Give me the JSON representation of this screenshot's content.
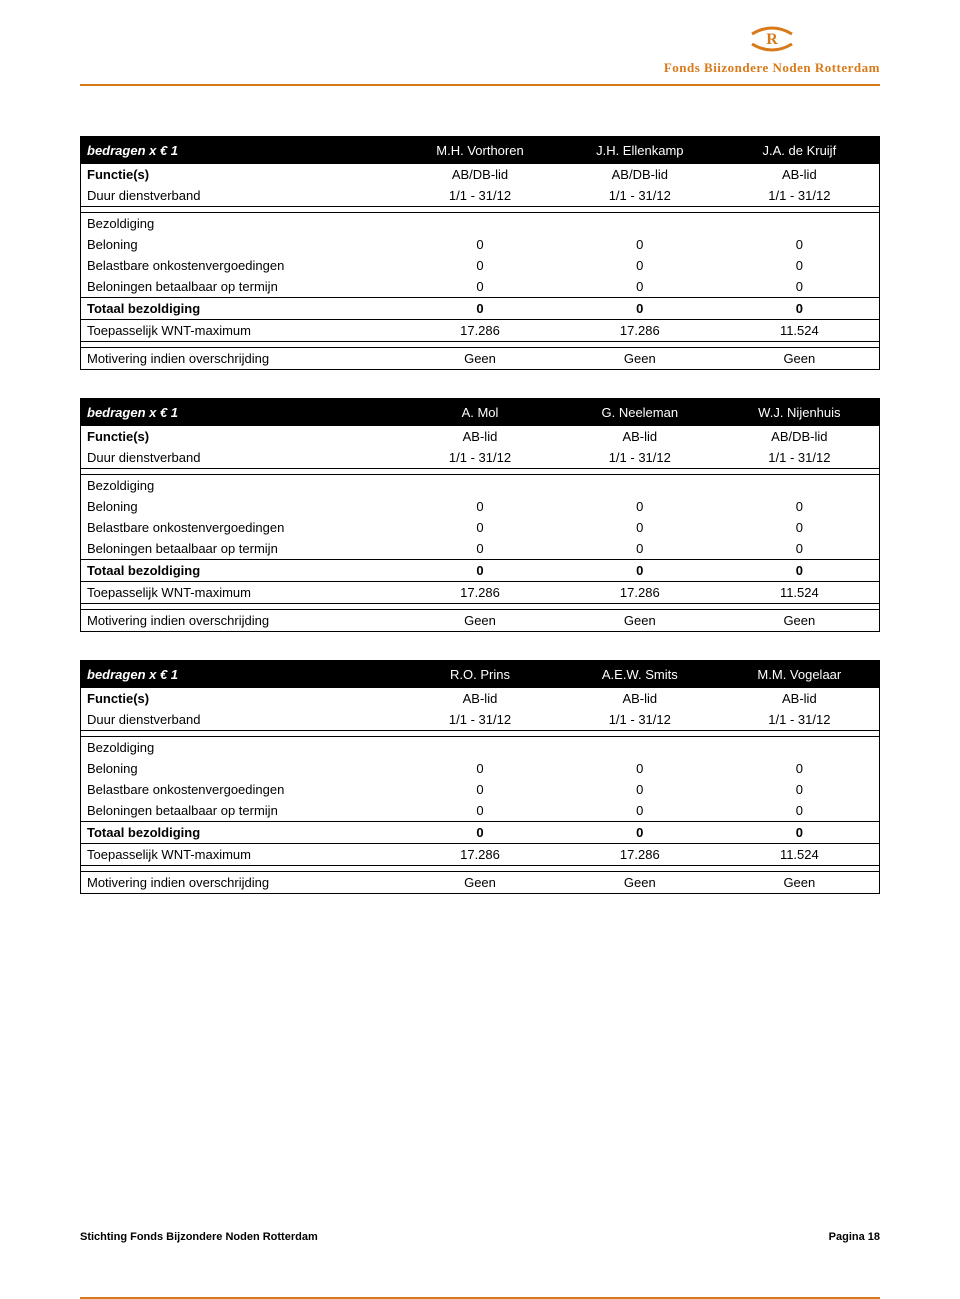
{
  "brand": {
    "name": "Fonds Biizondere Noden Rotterdam",
    "accent_color": "#d97a1a"
  },
  "tables": [
    {
      "header_label": "bedragen x € 1",
      "persons": [
        "M.H. Vorthoren",
        "J.H. Ellenkamp",
        "J.A. de Kruijf"
      ],
      "rows": [
        {
          "label": "Functie(s)",
          "vals": [
            "AB/DB-lid",
            "AB/DB-lid",
            "AB-lid"
          ],
          "bold_label": true
        },
        {
          "label": "Duur dienstverband",
          "vals": [
            "1/1 - 31/12",
            "1/1 - 31/12",
            "1/1 - 31/12"
          ]
        }
      ],
      "section_label": "Bezoldiging",
      "data_rows": [
        {
          "label": "Beloning",
          "vals": [
            "0",
            "0",
            "0"
          ]
        },
        {
          "label": "Belastbare onkostenvergoedingen",
          "vals": [
            "0",
            "0",
            "0"
          ]
        },
        {
          "label": "Beloningen betaalbaar op termijn",
          "vals": [
            "0",
            "0",
            "0"
          ]
        }
      ],
      "totals": [
        {
          "label": "Totaal bezoldiging",
          "vals": [
            "0",
            "0",
            "0"
          ],
          "bold": true
        },
        {
          "label": "Toepasselijk WNT-maximum",
          "vals": [
            "17.286",
            "17.286",
            "11.524"
          ]
        }
      ],
      "motiv": {
        "label": "Motivering indien overschrijding",
        "vals": [
          "Geen",
          "Geen",
          "Geen"
        ]
      }
    },
    {
      "header_label": "bedragen x € 1",
      "persons": [
        "A. Mol",
        "G. Neeleman",
        "W.J. Nijenhuis"
      ],
      "rows": [
        {
          "label": "Functie(s)",
          "vals": [
            "AB-lid",
            "AB-lid",
            "AB/DB-lid"
          ],
          "bold_label": true
        },
        {
          "label": "Duur dienstverband",
          "vals": [
            "1/1 - 31/12",
            "1/1 - 31/12",
            "1/1 - 31/12"
          ]
        }
      ],
      "section_label": "Bezoldiging",
      "data_rows": [
        {
          "label": "Beloning",
          "vals": [
            "0",
            "0",
            "0"
          ]
        },
        {
          "label": "Belastbare onkostenvergoedingen",
          "vals": [
            "0",
            "0",
            "0"
          ]
        },
        {
          "label": "Beloningen betaalbaar op termijn",
          "vals": [
            "0",
            "0",
            "0"
          ]
        }
      ],
      "totals": [
        {
          "label": "Totaal bezoldiging",
          "vals": [
            "0",
            "0",
            "0"
          ],
          "bold": true
        },
        {
          "label": "Toepasselijk WNT-maximum",
          "vals": [
            "17.286",
            "17.286",
            "11.524"
          ]
        }
      ],
      "motiv": {
        "label": "Motivering indien overschrijding",
        "vals": [
          "Geen",
          "Geen",
          "Geen"
        ]
      }
    },
    {
      "header_label": "bedragen x € 1",
      "persons": [
        "R.O. Prins",
        "A.E.W. Smits",
        "M.M. Vogelaar"
      ],
      "rows": [
        {
          "label": "Functie(s)",
          "vals": [
            "AB-lid",
            "AB-lid",
            "AB-lid"
          ],
          "bold_label": true
        },
        {
          "label": "Duur dienstverband",
          "vals": [
            "1/1 - 31/12",
            "1/1 - 31/12",
            "1/1 - 31/12"
          ]
        }
      ],
      "section_label": "Bezoldiging",
      "data_rows": [
        {
          "label": "Beloning",
          "vals": [
            "0",
            "0",
            "0"
          ]
        },
        {
          "label": "Belastbare onkostenvergoedingen",
          "vals": [
            "0",
            "0",
            "0"
          ]
        },
        {
          "label": "Beloningen betaalbaar op termijn",
          "vals": [
            "0",
            "0",
            "0"
          ]
        }
      ],
      "totals": [
        {
          "label": "Totaal bezoldiging",
          "vals": [
            "0",
            "0",
            "0"
          ],
          "bold": true
        },
        {
          "label": "Toepasselijk WNT-maximum",
          "vals": [
            "17.286",
            "17.286",
            "11.524"
          ]
        }
      ],
      "motiv": {
        "label": "Motivering indien overschrijding",
        "vals": [
          "Geen",
          "Geen",
          "Geen"
        ]
      }
    }
  ],
  "footer": {
    "left": "Stichting Fonds Bijzondere Noden Rotterdam",
    "right": "Pagina 18"
  }
}
